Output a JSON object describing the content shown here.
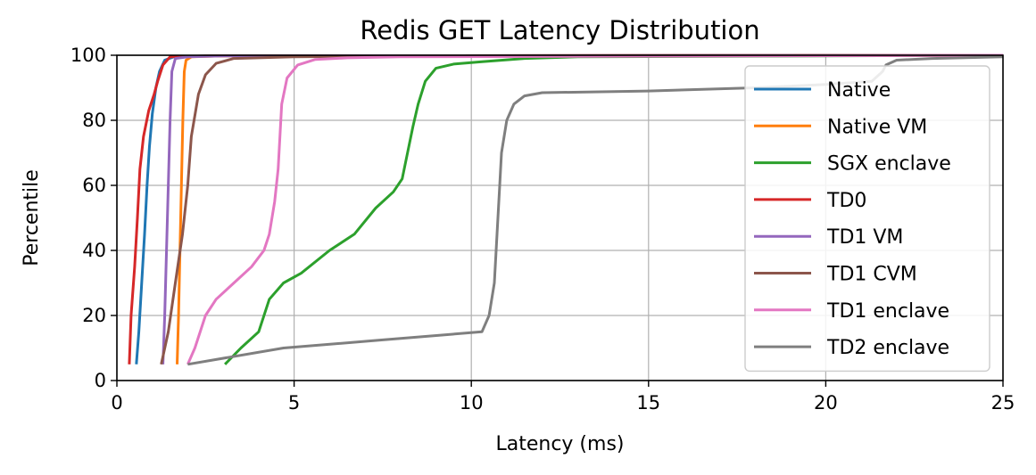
{
  "chart_data": {
    "type": "line",
    "title": "Redis GET Latency Distribution",
    "xlabel": "Latency (ms)",
    "ylabel": "Percentile",
    "xlim": [
      0,
      25
    ],
    "ylim": [
      0,
      100
    ],
    "xticks": [
      0,
      5,
      10,
      15,
      20,
      25
    ],
    "yticks": [
      0,
      20,
      40,
      60,
      80,
      100
    ],
    "grid": true,
    "legend_position": "right",
    "series": [
      {
        "name": "Native",
        "color": "#1f77b4",
        "points": [
          [
            0.55,
            5
          ],
          [
            0.62,
            15
          ],
          [
            0.7,
            30
          ],
          [
            0.78,
            45
          ],
          [
            0.85,
            60
          ],
          [
            0.92,
            72
          ],
          [
            1.0,
            82
          ],
          [
            1.1,
            90
          ],
          [
            1.2,
            95
          ],
          [
            1.35,
            98.5
          ],
          [
            1.6,
            99.5
          ],
          [
            2.5,
            99.8
          ],
          [
            25,
            100
          ]
        ]
      },
      {
        "name": "Native VM",
        "color": "#ff7f0e",
        "points": [
          [
            1.7,
            5
          ],
          [
            1.74,
            20
          ],
          [
            1.78,
            40
          ],
          [
            1.82,
            60
          ],
          [
            1.86,
            80
          ],
          [
            1.9,
            95
          ],
          [
            1.95,
            98.5
          ],
          [
            2.1,
            99.5
          ],
          [
            3.0,
            99.8
          ],
          [
            25,
            100
          ]
        ]
      },
      {
        "name": "SGX enclave",
        "color": "#2ca02c",
        "points": [
          [
            3.05,
            5
          ],
          [
            3.5,
            10
          ],
          [
            4.0,
            15
          ],
          [
            4.3,
            25
          ],
          [
            4.7,
            30
          ],
          [
            5.2,
            33
          ],
          [
            6.0,
            40
          ],
          [
            6.7,
            45
          ],
          [
            7.3,
            53
          ],
          [
            7.8,
            58
          ],
          [
            8.05,
            62
          ],
          [
            8.2,
            70
          ],
          [
            8.35,
            78
          ],
          [
            8.5,
            85
          ],
          [
            8.7,
            92
          ],
          [
            9.0,
            96
          ],
          [
            9.5,
            97.3
          ],
          [
            10.3,
            98
          ],
          [
            11.5,
            99
          ],
          [
            13.0,
            99.5
          ],
          [
            25,
            100
          ]
        ]
      },
      {
        "name": "TD0",
        "color": "#d62728",
        "points": [
          [
            0.35,
            5
          ],
          [
            0.4,
            20
          ],
          [
            0.5,
            35
          ],
          [
            0.58,
            50
          ],
          [
            0.65,
            65
          ],
          [
            0.75,
            75
          ],
          [
            0.9,
            83
          ],
          [
            1.05,
            88
          ],
          [
            1.15,
            92
          ],
          [
            1.3,
            97
          ],
          [
            1.5,
            99.5
          ],
          [
            2.5,
            99.8
          ],
          [
            25,
            100
          ]
        ]
      },
      {
        "name": "TD1 VM",
        "color": "#9467bd",
        "points": [
          [
            1.3,
            5
          ],
          [
            1.35,
            20
          ],
          [
            1.4,
            40
          ],
          [
            1.45,
            60
          ],
          [
            1.5,
            80
          ],
          [
            1.55,
            95
          ],
          [
            1.65,
            99
          ],
          [
            2.0,
            99.5
          ],
          [
            3.0,
            99.8
          ],
          [
            25,
            100
          ]
        ]
      },
      {
        "name": "TD1 CVM",
        "color": "#8c564b",
        "points": [
          [
            1.25,
            5
          ],
          [
            1.45,
            15
          ],
          [
            1.65,
            30
          ],
          [
            1.85,
            45
          ],
          [
            2.0,
            60
          ],
          [
            2.1,
            75
          ],
          [
            2.3,
            88
          ],
          [
            2.5,
            94
          ],
          [
            2.8,
            97.5
          ],
          [
            3.3,
            99
          ],
          [
            5.0,
            99.5
          ],
          [
            8.0,
            99.8
          ],
          [
            25,
            100
          ]
        ]
      },
      {
        "name": "TD1 enclave",
        "color": "#e377c2",
        "points": [
          [
            2.0,
            5
          ],
          [
            2.2,
            10
          ],
          [
            2.5,
            20
          ],
          [
            2.8,
            25
          ],
          [
            3.3,
            30
          ],
          [
            3.8,
            35
          ],
          [
            4.15,
            40
          ],
          [
            4.3,
            45
          ],
          [
            4.45,
            55
          ],
          [
            4.55,
            65
          ],
          [
            4.6,
            75
          ],
          [
            4.65,
            85
          ],
          [
            4.8,
            93
          ],
          [
            5.1,
            97
          ],
          [
            5.6,
            98.7
          ],
          [
            6.5,
            99.2
          ],
          [
            8.0,
            99.5
          ],
          [
            25,
            100
          ]
        ]
      },
      {
        "name": "TD2 enclave",
        "color": "#7f7f7f",
        "points": [
          [
            2.0,
            5
          ],
          [
            4.7,
            10
          ],
          [
            7.5,
            12.5
          ],
          [
            10.3,
            15
          ],
          [
            10.5,
            20
          ],
          [
            10.65,
            30
          ],
          [
            10.75,
            50
          ],
          [
            10.85,
            70
          ],
          [
            11.0,
            80
          ],
          [
            11.2,
            85
          ],
          [
            11.5,
            87.5
          ],
          [
            12.0,
            88.5
          ],
          [
            15.0,
            89
          ],
          [
            18.0,
            90
          ],
          [
            20.0,
            91
          ],
          [
            21.3,
            92
          ],
          [
            21.6,
            95
          ],
          [
            21.7,
            97
          ],
          [
            22.0,
            98.5
          ],
          [
            23.0,
            99
          ],
          [
            25,
            99.5
          ]
        ]
      }
    ]
  }
}
